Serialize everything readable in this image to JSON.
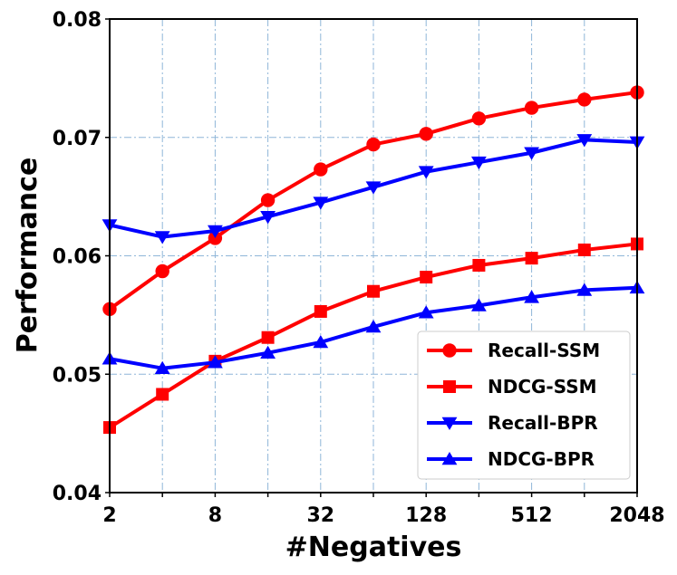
{
  "chart_data": {
    "type": "line",
    "title": "",
    "xlabel": "#Negatives",
    "ylabel": "Performance",
    "x_scale": "log2",
    "x": [
      2,
      4,
      8,
      16,
      32,
      64,
      128,
      256,
      512,
      1024,
      2048
    ],
    "xticks": [
      2,
      8,
      32,
      128,
      512,
      2048
    ],
    "xtick_labels": [
      "2",
      "8",
      "32",
      "128",
      "512",
      "2048"
    ],
    "xlim": [
      2,
      2048
    ],
    "ylim": [
      0.04,
      0.08
    ],
    "yticks": [
      0.04,
      0.05,
      0.06,
      0.07,
      0.08
    ],
    "ytick_labels": [
      "0.04",
      "0.05",
      "0.06",
      "0.07",
      "0.08"
    ],
    "grid": true,
    "legend_position": "bottom-right",
    "series": [
      {
        "name": "Recall-SSM",
        "color": "#ff0000",
        "marker": "circle",
        "values": [
          0.0555,
          0.0587,
          0.0615,
          0.0647,
          0.0673,
          0.0694,
          0.0703,
          0.0716,
          0.0725,
          0.0732,
          0.0738
        ]
      },
      {
        "name": "NDCG-SSM",
        "color": "#ff0000",
        "marker": "square",
        "values": [
          0.0455,
          0.0483,
          0.0511,
          0.0531,
          0.0553,
          0.057,
          0.0582,
          0.0592,
          0.0598,
          0.0605,
          0.061
        ]
      },
      {
        "name": "Recall-BPR",
        "color": "#0000ff",
        "marker": "triangle-down",
        "values": [
          0.0626,
          0.0616,
          0.0621,
          0.0633,
          0.0645,
          0.0658,
          0.0671,
          0.0679,
          0.0687,
          0.0698,
          0.0696
        ]
      },
      {
        "name": "NDCG-BPR",
        "color": "#0000ff",
        "marker": "triangle-up",
        "values": [
          0.0513,
          0.0505,
          0.051,
          0.0518,
          0.0527,
          0.054,
          0.0552,
          0.0558,
          0.0565,
          0.0571,
          0.0573
        ]
      }
    ]
  }
}
